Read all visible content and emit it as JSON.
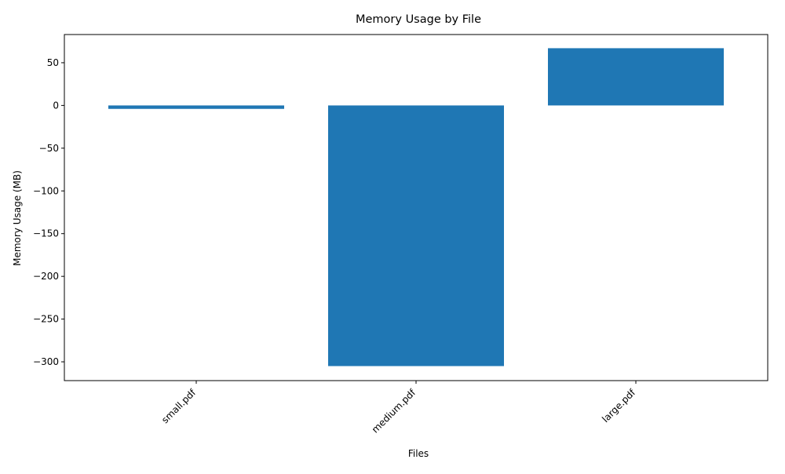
{
  "chart_data": {
    "type": "bar",
    "title": "Memory Usage by File",
    "xlabel": "Files",
    "ylabel": "Memory Usage (MB)",
    "categories": [
      "small.pdf",
      "medium.pdf",
      "large.pdf"
    ],
    "values": [
      -4,
      -305,
      67
    ],
    "ylim": [
      -322,
      83
    ],
    "yticks": [
      50,
      0,
      -50,
      -100,
      -150,
      -200,
      -250,
      -300
    ],
    "ytick_labels": [
      "50",
      "0",
      "−50",
      "−100",
      "−150",
      "−200",
      "−250",
      "−300"
    ],
    "grid": false,
    "bar_color": "#1f77b4",
    "xtick_rotation_deg": 45
  }
}
